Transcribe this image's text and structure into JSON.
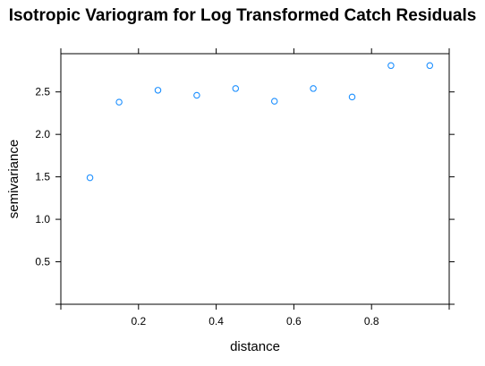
{
  "chart_data": {
    "type": "scatter",
    "title": "Isotropic Variogram for Log Transformed Catch Residuals",
    "xlabel": "distance",
    "ylabel": "semivariance",
    "xlim": [
      0,
      1.0
    ],
    "ylim": [
      0,
      2.95
    ],
    "x_ticks": [
      0.2,
      0.4,
      0.6,
      0.8
    ],
    "y_ticks": [
      0.5,
      1.0,
      1.5,
      2.0,
      2.5
    ],
    "x_tick_labels": [
      "0.2",
      "0.4",
      "0.6",
      "0.8"
    ],
    "y_tick_labels": [
      "0.5",
      "1.0",
      "1.5",
      "2.0",
      "2.5"
    ],
    "grid": false,
    "point_color": "#1e90ff",
    "points": [
      {
        "x": 0.075,
        "y": 1.49
      },
      {
        "x": 0.15,
        "y": 2.38
      },
      {
        "x": 0.25,
        "y": 2.52
      },
      {
        "x": 0.35,
        "y": 2.46
      },
      {
        "x": 0.45,
        "y": 2.54
      },
      {
        "x": 0.55,
        "y": 2.39
      },
      {
        "x": 0.65,
        "y": 2.54
      },
      {
        "x": 0.75,
        "y": 2.44
      },
      {
        "x": 0.85,
        "y": 2.81
      },
      {
        "x": 0.95,
        "y": 2.81
      }
    ]
  }
}
